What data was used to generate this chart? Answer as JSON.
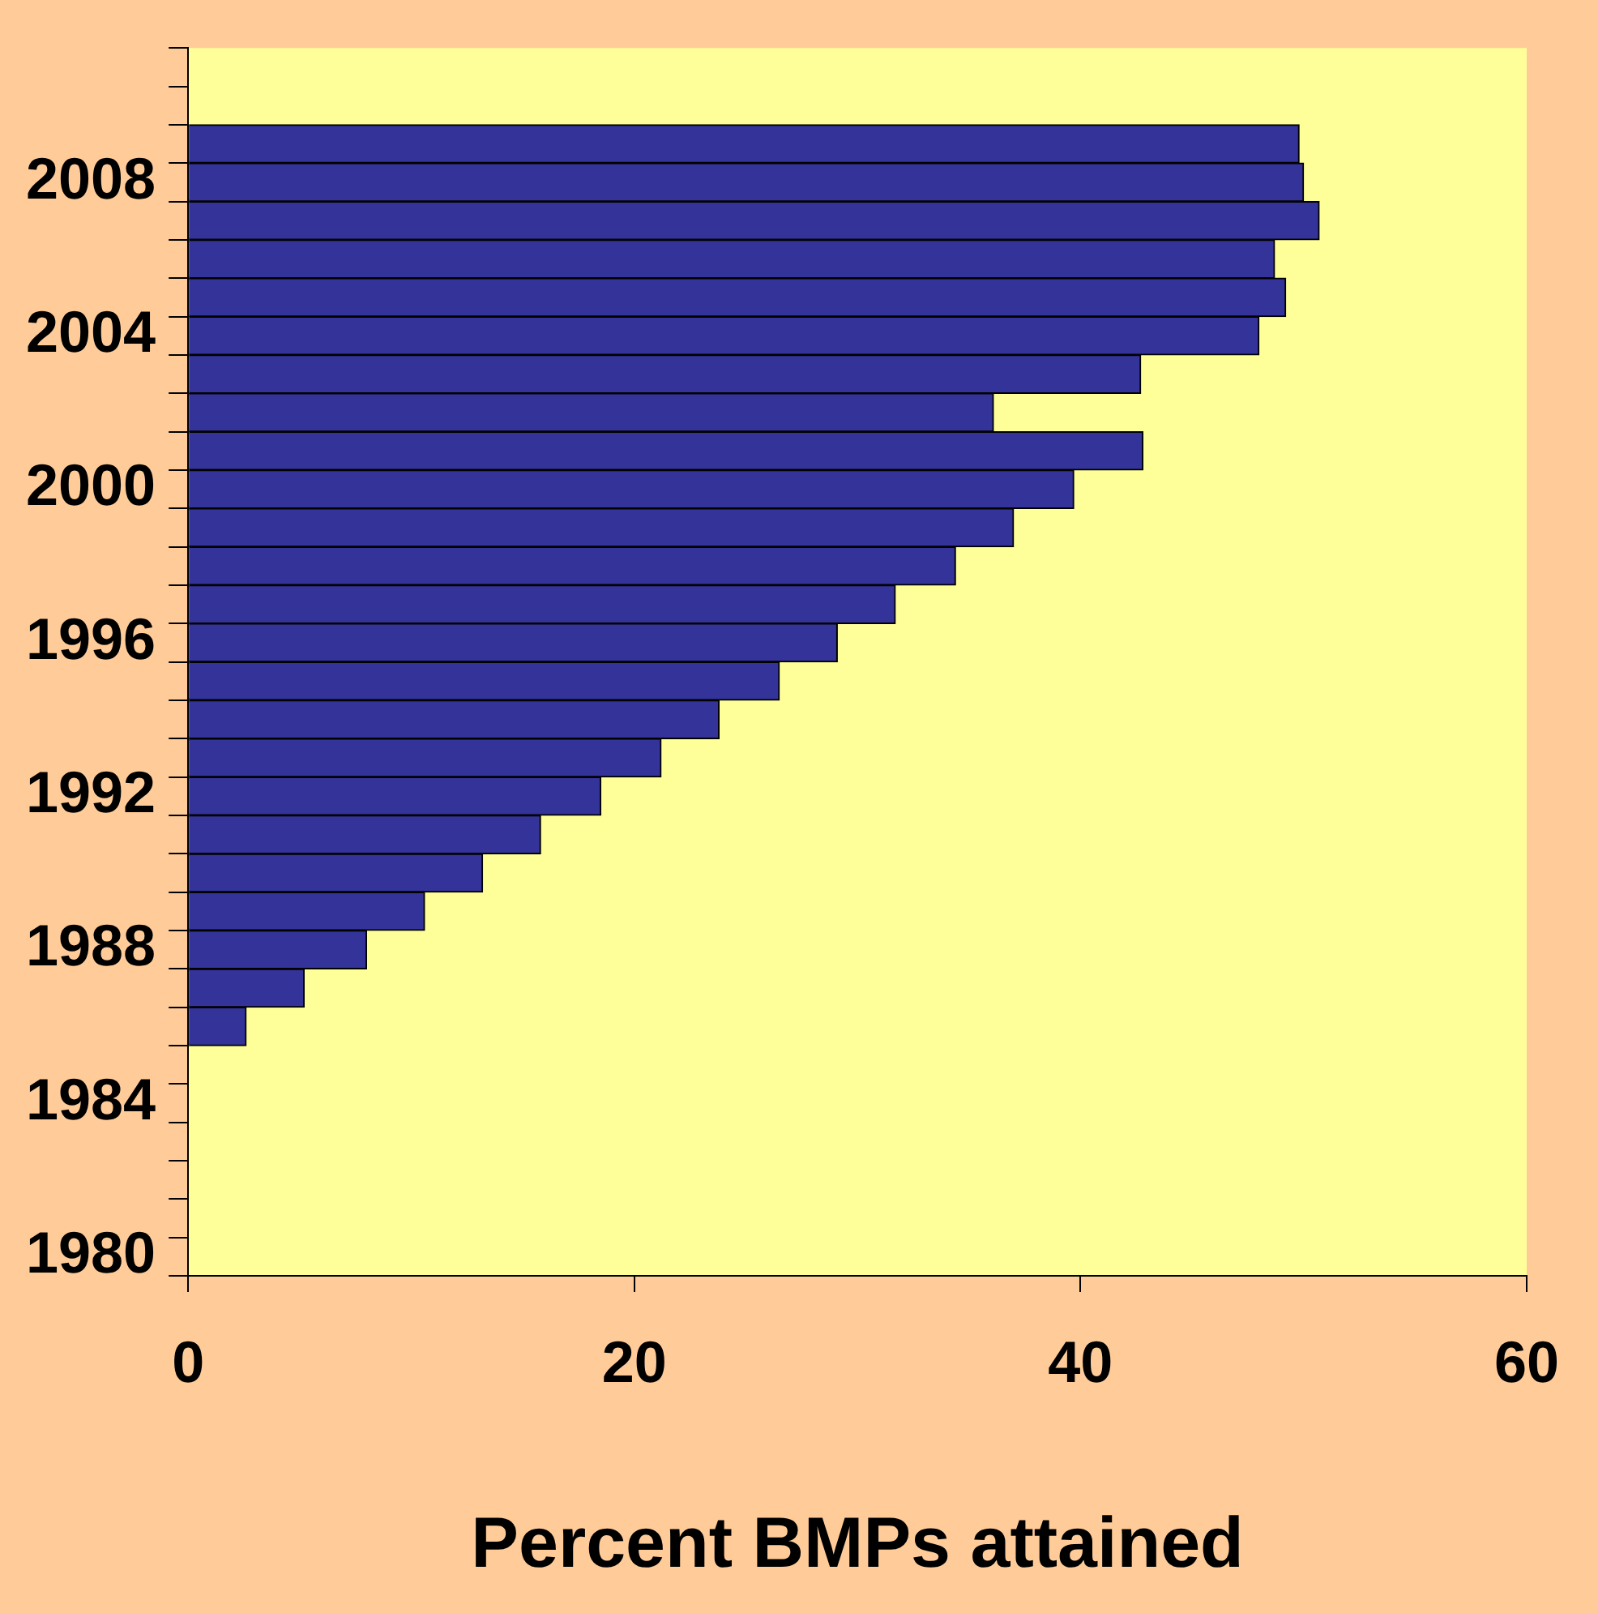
{
  "chart_data": {
    "type": "bar",
    "orientation": "horizontal",
    "xlabel": "Percent BMPs attained",
    "categories": [
      null,
      null,
      null,
      "2008",
      null,
      null,
      null,
      "2004",
      null,
      null,
      null,
      "2000",
      null,
      null,
      null,
      "1996",
      null,
      null,
      null,
      "1992",
      null,
      null,
      null,
      "1988",
      null,
      null,
      null,
      "1984",
      null,
      null,
      null,
      "1980"
    ],
    "values": [
      null,
      null,
      49.8,
      50.0,
      50.7,
      48.7,
      49.2,
      48.0,
      42.7,
      36.1,
      42.8,
      39.7,
      37.0,
      34.4,
      31.7,
      29.1,
      26.5,
      23.8,
      21.2,
      18.5,
      15.8,
      13.2,
      10.6,
      8.0,
      5.2,
      2.6,
      null,
      null,
      null,
      null,
      null,
      null
    ],
    "color": "#333399",
    "xlim": [
      0,
      60
    ],
    "xticks": [
      0,
      20,
      40,
      60
    ],
    "grid": false,
    "legend": false
  }
}
